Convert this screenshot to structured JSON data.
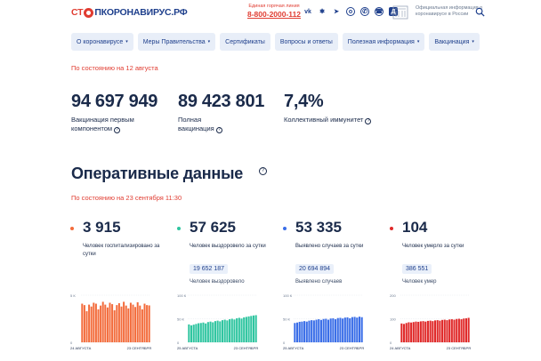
{
  "header": {
    "logo_part1": "СТ",
    "logo_part2": "ПКОРОНАВИРУС.РФ",
    "hotline_title": "Единая горячая линия",
    "hotline_phone": "8-800-2000-112",
    "socials": [
      "vk-icon",
      "ok-icon",
      "telegram-icon",
      "odnoklassniki-icon",
      "viber-icon",
      "phone-icon",
      "news-icon"
    ],
    "gov_text": "Официальная информация о коронавирусе в России"
  },
  "nav": {
    "items": [
      {
        "label": "О коронавирусе",
        "caret": "▾"
      },
      {
        "label": "Меры Правительства",
        "caret": "▾"
      },
      {
        "label": "Сертификаты",
        "caret": ""
      },
      {
        "label": "Вопросы и ответы",
        "caret": ""
      },
      {
        "label": "Полезная информация",
        "caret": "▾"
      },
      {
        "label": "Вакцинация",
        "caret": "▾"
      }
    ]
  },
  "vaccination": {
    "date": "По состоянию на 12 августа",
    "stats": [
      {
        "value": "94 697 949",
        "label_line1": "Вакцинация первым",
        "label_line2": "компонентом"
      },
      {
        "value": "89 423 801",
        "label_line1": "Полная",
        "label_line2": "вакцинация"
      },
      {
        "value": "7,4%",
        "label_line1": "Коллективный иммунитет",
        "label_line2": ""
      }
    ]
  },
  "operational": {
    "title": "Оперативные данные",
    "date": "По состоянию на 23 сентября 11:30",
    "cards": [
      {
        "value": "3 915",
        "label": "Человек госпитализировано за сутки",
        "total": "",
        "total_label": "",
        "color": "#f36b3b"
      },
      {
        "value": "57 625",
        "label": "Человек выздоровело за сутки",
        "total": "19 652 187",
        "total_label": "Человек выздоровело",
        "color": "#2fc5a0"
      },
      {
        "value": "53 335",
        "label": "Выявлено случаев за сутки",
        "total": "20 694 894",
        "total_label": "Выявлено случаев",
        "color": "#3a6ee8"
      },
      {
        "value": "104",
        "label": "Человек умерло за сутки",
        "total": "386 551",
        "total_label": "Человек умер",
        "color": "#e02a2a"
      }
    ]
  },
  "chart_data": [
    {
      "type": "bar",
      "color": "#f36b3b",
      "y_ticks": [
        "5 К",
        "0"
      ],
      "ylim": [
        0,
        5000
      ],
      "x_labels": [
        "24 АВГУСТА",
        "23 СЕНТЯБРЯ"
      ],
      "values": [
        4100,
        3950,
        3300,
        4000,
        3800,
        4200,
        4100,
        3500,
        3900,
        4300,
        4000,
        3700,
        4200,
        4050,
        3400,
        3950,
        4150,
        3800,
        4300,
        3900,
        3600,
        4200,
        4000,
        3750,
        4250,
        3900,
        3500,
        4100,
        3950,
        3915
      ]
    },
    {
      "type": "bar",
      "color": "#2fc5a0",
      "y_ticks": [
        "100 К",
        "50 К",
        "0"
      ],
      "ylim": [
        0,
        100000
      ],
      "x_labels": [
        "25 АВГУСТА",
        "23 СЕНТЯБРЯ"
      ],
      "values": [
        38000,
        36000,
        37500,
        39000,
        40500,
        41000,
        42000,
        40000,
        43000,
        44000,
        42500,
        45000,
        46000,
        44500,
        47000,
        48000,
        46500,
        49000,
        50000,
        48500,
        51000,
        52000,
        50500,
        53000,
        54000,
        55000,
        56000,
        57000,
        57625
      ]
    },
    {
      "type": "bar",
      "color": "#3a6ee8",
      "y_ticks": [
        "100 К",
        "50 К",
        "0"
      ],
      "ylim": [
        0,
        100000
      ],
      "x_labels": [
        "25 АВГУСТА",
        "23 СЕНТЯБРЯ"
      ],
      "values": [
        41000,
        42000,
        43500,
        44000,
        45000,
        44000,
        46000,
        47000,
        46500,
        48000,
        49000,
        47500,
        49500,
        50000,
        48000,
        50500,
        51000,
        49000,
        51500,
        52000,
        50500,
        52500,
        53000,
        51000,
        53500,
        54000,
        52500,
        54500,
        53335
      ]
    },
    {
      "type": "bar",
      "color": "#e02a2a",
      "y_ticks": [
        "200",
        "100",
        "0"
      ],
      "ylim": [
        0,
        200
      ],
      "x_labels": [
        "24 АВГУСТА",
        "23 СЕНТЯБРЯ"
      ],
      "values": [
        80,
        78,
        82,
        85,
        84,
        86,
        88,
        87,
        89,
        90,
        88,
        91,
        92,
        90,
        93,
        94,
        92,
        95,
        96,
        94,
        97,
        98,
        96,
        99,
        100,
        98,
        101,
        102,
        104
      ]
    }
  ]
}
